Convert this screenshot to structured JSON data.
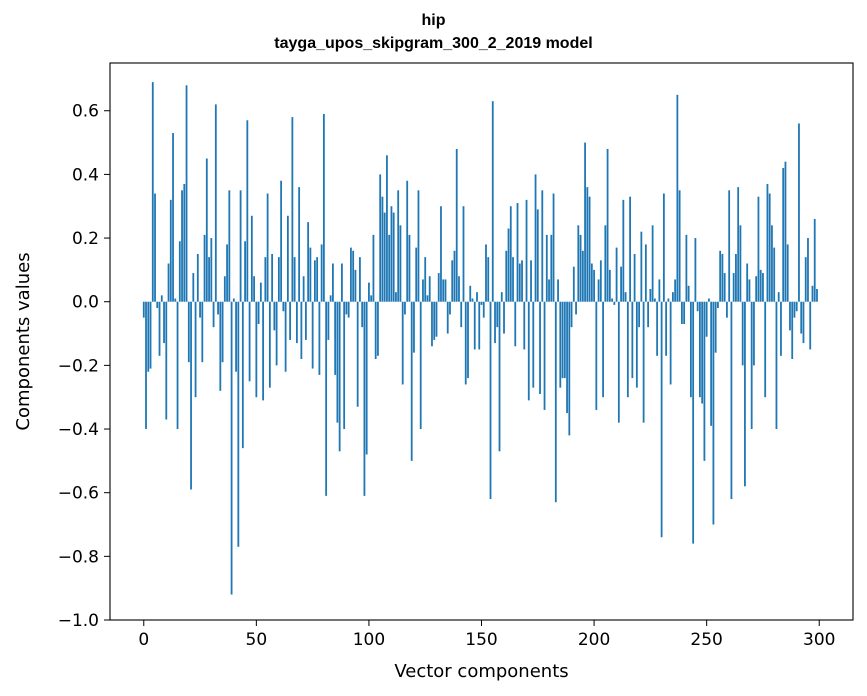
{
  "chart_data": {
    "type": "bar",
    "title": "hip",
    "subtitle": "tayga_upos_skipgram_300_2_2019 model",
    "xlabel": "Vector components",
    "ylabel": "Components values",
    "xlim": [
      -15,
      315
    ],
    "ylim": [
      -1.0,
      0.75
    ],
    "xticks": [
      0,
      50,
      100,
      150,
      200,
      250,
      300
    ],
    "yticks": [
      -1.0,
      -0.8,
      -0.6,
      -0.4,
      -0.2,
      0.0,
      0.2,
      0.4,
      0.6
    ],
    "ytick_labels": [
      "−1.0",
      "−0.8",
      "−0.6",
      "−0.4",
      "−0.2",
      "0.0",
      "0.2",
      "0.4",
      "0.6"
    ],
    "bar_color": "#1f77b4",
    "x": "0..299",
    "values": [
      -0.05,
      -0.4,
      -0.22,
      -0.21,
      0.69,
      0.34,
      -0.02,
      -0.17,
      0.02,
      -0.13,
      -0.37,
      0.12,
      0.32,
      0.53,
      0.01,
      -0.4,
      0.19,
      0.35,
      0.37,
      0.68,
      -0.19,
      -0.59,
      0.09,
      -0.3,
      0.15,
      -0.05,
      -0.19,
      0.21,
      0.45,
      0.14,
      0.2,
      -0.08,
      0.62,
      -0.04,
      -0.28,
      -0.19,
      0.08,
      0.18,
      0.35,
      -0.92,
      0.01,
      -0.22,
      -0.77,
      0.35,
      -0.46,
      0.19,
      0.57,
      -0.25,
      0.27,
      0.08,
      -0.3,
      -0.07,
      0.06,
      -0.31,
      0.14,
      0.34,
      -0.27,
      0.15,
      -0.09,
      -0.2,
      0.14,
      0.38,
      -0.03,
      -0.22,
      0.27,
      -0.12,
      0.58,
      0.14,
      -0.13,
      0.36,
      -0.18,
      0.08,
      -0.12,
      0.25,
      0.17,
      -0.21,
      0.13,
      0.14,
      -0.23,
      0.18,
      0.59,
      -0.61,
      -0.12,
      0.02,
      0.12,
      -0.23,
      -0.38,
      -0.47,
      0.12,
      -0.4,
      -0.04,
      -0.05,
      0.17,
      0.16,
      0.1,
      -0.33,
      0.14,
      -0.08,
      -0.61,
      -0.48,
      0.06,
      0.02,
      0.21,
      -0.18,
      -0.17,
      0.4,
      0.33,
      0.28,
      0.46,
      0.21,
      0.3,
      0.28,
      0.03,
      0.35,
      0.24,
      -0.26,
      -0.04,
      0.38,
      0.21,
      -0.5,
      -0.16,
      0.17,
      0.35,
      -0.4,
      0.07,
      0.14,
      0.02,
      0.08,
      -0.14,
      -0.12,
      -0.11,
      0.09,
      0.3,
      0.07,
      0.07,
      -0.1,
      -0.04,
      0.13,
      0.16,
      0.48,
      0.08,
      -0.08,
      0.3,
      -0.26,
      -0.24,
      0.05,
      0.01,
      -0.15,
      0.03,
      -0.15,
      -0.01,
      -0.05,
      0.18,
      0.14,
      -0.62,
      0.63,
      -0.13,
      -0.08,
      -0.47,
      0.03,
      -0.1,
      0.16,
      0.23,
      0.3,
      0.14,
      -0.14,
      0.31,
      0.12,
      0.13,
      -0.15,
      0.32,
      -0.31,
      0.13,
      -0.27,
      0.4,
      0.29,
      -0.29,
      0.35,
      -0.34,
      0.21,
      0.07,
      0.21,
      0.34,
      -0.63,
      0.07,
      -0.27,
      -0.24,
      -0.24,
      -0.35,
      -0.42,
      -0.08,
      0.11,
      -0.04,
      0.24,
      0.21,
      0.16,
      0.5,
      0.36,
      0.33,
      0.12,
      0.1,
      -0.34,
      0.07,
      0.13,
      -0.3,
      0.24,
      0.48,
      0.1,
      0.01,
      -0.01,
      0.17,
      -0.38,
      0.11,
      0.32,
      0.03,
      -0.3,
      0.33,
      -0.24,
      0.15,
      -0.27,
      -0.08,
      0.22,
      -0.38,
      0.18,
      -0.08,
      0.04,
      0.24,
      0.01,
      -0.17,
      0.07,
      -0.74,
      0.34,
      -0.17,
      0.01,
      -0.26,
      0.03,
      0.07,
      0.65,
      0.35,
      -0.07,
      -0.07,
      0.21,
      0.05,
      -0.3,
      -0.76,
      0.2,
      -0.03,
      -0.3,
      -0.32,
      -0.5,
      -0.11,
      0.01,
      -0.39,
      -0.7,
      -0.16,
      -0.02,
      0.16,
      0.15,
      0.09,
      -0.05,
      0.35,
      -0.62,
      0.09,
      0.15,
      0.36,
      0.24,
      -0.2,
      -0.58,
      0.12,
      0.07,
      -0.4,
      -0.2,
      0.08,
      0.33,
      0.1,
      0.09,
      -0.3,
      0.37,
      0.34,
      0.24,
      0.17,
      -0.4,
      0.03,
      -0.17,
      0.42,
      0.44,
      0.18,
      -0.09,
      -0.18,
      -0.05,
      -0.03,
      0.56,
      -0.1,
      -0.13,
      0.14,
      0.2,
      -0.15,
      0.05,
      0.26,
      0.04
    ]
  }
}
